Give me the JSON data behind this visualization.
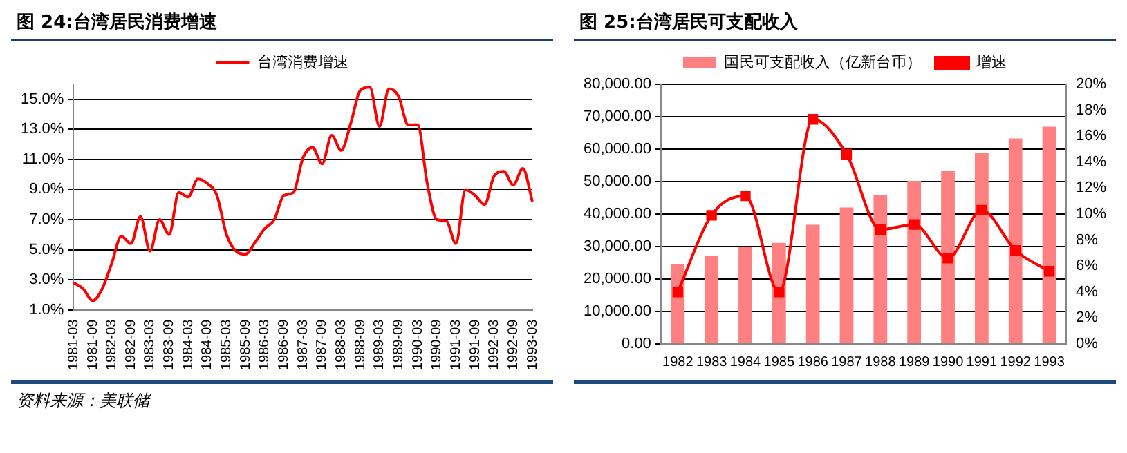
{
  "chart_data": [
    {
      "type": "line",
      "title": "图 24:台湾居民消费增速",
      "categories": [
        "1981-03",
        null,
        "1981-09",
        null,
        "1982-03",
        null,
        "1982-09",
        null,
        "1983-03",
        null,
        "1983-09",
        null,
        "1984-03",
        null,
        "1984-09",
        null,
        "1985-03",
        null,
        "1985-09",
        null,
        "1986-03",
        null,
        "1986-09",
        null,
        "1987-03",
        null,
        "1987-09",
        null,
        "1988-03",
        null,
        "1988-09",
        null,
        "1989-03",
        null,
        "1989-09",
        null,
        "1990-03",
        null,
        "1990-09",
        null,
        "1991-03",
        null,
        "1991-09",
        null,
        "1992-03",
        null,
        "1992-09",
        null,
        "1993-03"
      ],
      "series": [
        {
          "name": "台湾消费增速",
          "color": "#ff0000",
          "marker": "none",
          "values": [
            2.8,
            2.4,
            1.6,
            2.4,
            4.1,
            5.9,
            5.4,
            7.2,
            4.9,
            7.0,
            6.0,
            8.8,
            8.5,
            9.7,
            9.4,
            8.6,
            6.0,
            4.9,
            4.7,
            5.5,
            6.4,
            7.0,
            8.6,
            8.8,
            11.1,
            11.8,
            10.7,
            12.6,
            11.6,
            13.4,
            15.6,
            15.8,
            13.2,
            15.7,
            15.2,
            13.3,
            13.3,
            9.4,
            7.0,
            6.9,
            5.4,
            9.0,
            8.6,
            8.0,
            9.9,
            10.2,
            9.3,
            10.4,
            8.2
          ]
        }
      ],
      "ylim": [
        1,
        16
      ],
      "yticks": [
        {
          "value": 1,
          "label": "1.0%"
        },
        {
          "value": 3,
          "label": "3.0%"
        },
        {
          "value": 5,
          "label": "5.0%"
        },
        {
          "value": 7,
          "label": "7.0%"
        },
        {
          "value": 9,
          "label": "9.0%"
        },
        {
          "value": 11,
          "label": "11.0%"
        },
        {
          "value": 13,
          "label": "13.0%"
        },
        {
          "value": 15,
          "label": "15.0%"
        }
      ],
      "grid": "y",
      "legend": "top",
      "line_style": "solid",
      "annotations": [
        "资料来源：美联储"
      ]
    },
    {
      "type": "bar",
      "title": "图 25:台湾居民可支配收入",
      "categories": [
        "1982",
        "1983",
        "1984",
        "1985",
        "1986",
        "1987",
        "1988",
        "1989",
        "1990",
        "1991",
        "1992",
        "1993"
      ],
      "series": [
        {
          "name": "国民可支配收入（亿新台币）",
          "type": "bar",
          "color": "#ff8080",
          "values": [
            24500,
            27000,
            30000,
            31100,
            36700,
            42000,
            45800,
            50200,
            53400,
            58900,
            63300,
            66900
          ]
        },
        {
          "name": "增速",
          "type": "line",
          "axis": "y2",
          "color": "#ff0000",
          "marker": "square",
          "values": [
            4.0,
            9.9,
            11.4,
            4.0,
            17.3,
            14.6,
            8.8,
            9.2,
            6.6,
            10.3,
            7.2,
            5.6
          ]
        }
      ],
      "ylim": [
        0,
        80000
      ],
      "yticks": [
        {
          "value": 0,
          "label": "0.00"
        },
        {
          "value": 10000,
          "label": "10,000.00"
        },
        {
          "value": 20000,
          "label": "20,000.00"
        },
        {
          "value": 30000,
          "label": "30,000.00"
        },
        {
          "value": 40000,
          "label": "40,000.00"
        },
        {
          "value": 50000,
          "label": "50,000.00"
        },
        {
          "value": 60000,
          "label": "60,000.00"
        },
        {
          "value": 70000,
          "label": "70,000.00"
        },
        {
          "value": 80000,
          "label": "80,000.00"
        }
      ],
      "y2lim": [
        0,
        20
      ],
      "y2ticks": [
        {
          "value": 0,
          "label": "0%"
        },
        {
          "value": 2,
          "label": "2%"
        },
        {
          "value": 4,
          "label": "4%"
        },
        {
          "value": 6,
          "label": "6%"
        },
        {
          "value": 8,
          "label": "8%"
        },
        {
          "value": 10,
          "label": "10%"
        },
        {
          "value": 12,
          "label": "12%"
        },
        {
          "value": 14,
          "label": "14%"
        },
        {
          "value": 16,
          "label": "16%"
        },
        {
          "value": 18,
          "label": "18%"
        },
        {
          "value": 20,
          "label": "20%"
        }
      ],
      "grid": "y",
      "legend": "top",
      "line_style": "solid"
    }
  ]
}
